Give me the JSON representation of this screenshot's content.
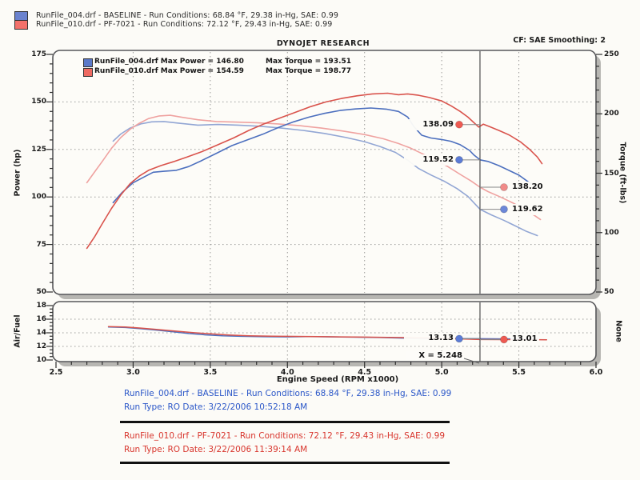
{
  "window": {
    "background": "#fcfbf7"
  },
  "header": {
    "runs": [
      {
        "swatch_color": "#6b83cf",
        "text": "RunFile_004.drf - BASELINE  -  Run Conditions: 68.84 °F, 29.38 in-Hg, SAE: 0.99"
      },
      {
        "swatch_color": "#f3716b",
        "text": "RunFile_010.drf - PF-7021  -  Run Conditions: 72.12 °F, 29.43 in-Hg, SAE: 0.99"
      }
    ],
    "title": "DYNOJET RESEARCH",
    "correction": "CF: SAE  Smoothing: 2"
  },
  "max_legend": [
    {
      "swatch_color": "#5b79c9",
      "label": "RunFile_004.drf Max Power = 146.80",
      "torque": "Max Torque = 193.51"
    },
    {
      "swatch_color": "#ef6a62",
      "label": "RunFile_010.drf Max Power = 154.59",
      "torque": "Max Torque = 198.77"
    }
  ],
  "chart_data": {
    "type": "line",
    "xlabel": "Engine Speed (RPM x1000)",
    "x_range": [
      2.5,
      6.0
    ],
    "x_tick_labels": [
      "2.5",
      "3.0",
      "3.5",
      "4.0",
      "4.5",
      "5.0",
      "5.5",
      "6.0"
    ],
    "x_gridlines": [
      3.0,
      3.5,
      4.0,
      4.5,
      5.0,
      5.5
    ],
    "main_panel": {
      "left_axis": {
        "label": "Power (hp)",
        "ticks": [
          175,
          150,
          125,
          100,
          75,
          50
        ],
        "range": [
          50,
          175
        ],
        "minor_step": 5
      },
      "right_axis": {
        "label": "Torque (ft-lbs)",
        "ticks": [
          250,
          200,
          150,
          100,
          50
        ],
        "range": [
          50,
          250
        ],
        "minor_step": 10
      },
      "h_gridlines_power": [
        150,
        125,
        100,
        75
      ],
      "series": [
        {
          "name": "RunFile_004 Torque",
          "axis": "torque",
          "color": "#92a6d4",
          "points": [
            [
              2.87,
              177
            ],
            [
              2.92,
              183
            ],
            [
              2.98,
              188
            ],
            [
              3.05,
              191.5
            ],
            [
              3.12,
              193.2
            ],
            [
              3.2,
              193.51
            ],
            [
              3.3,
              192
            ],
            [
              3.42,
              190.5
            ],
            [
              3.55,
              191
            ],
            [
              3.68,
              190.5
            ],
            [
              3.82,
              189.5
            ],
            [
              3.96,
              188
            ],
            [
              4.1,
              186
            ],
            [
              4.24,
              183.5
            ],
            [
              4.38,
              180
            ],
            [
              4.5,
              176.5
            ],
            [
              4.6,
              172.5
            ],
            [
              4.7,
              167.5
            ],
            [
              4.78,
              161
            ],
            [
              4.85,
              154
            ],
            [
              4.93,
              148.5
            ],
            [
              5.02,
              143
            ],
            [
              5.1,
              137
            ],
            [
              5.17,
              130.5
            ],
            [
              5.248,
              119.62
            ],
            [
              5.32,
              115
            ],
            [
              5.4,
              110.5
            ],
            [
              5.48,
              105.5
            ],
            [
              5.55,
              101
            ],
            [
              5.62,
              97.5
            ]
          ]
        },
        {
          "name": "RunFile_010 Torque",
          "axis": "torque",
          "color": "#efa2a0",
          "points": [
            [
              2.7,
              142
            ],
            [
              2.75,
              151
            ],
            [
              2.8,
              160
            ],
            [
              2.86,
              171
            ],
            [
              2.92,
              180
            ],
            [
              2.98,
              187
            ],
            [
              3.04,
              192
            ],
            [
              3.1,
              196
            ],
            [
              3.17,
              198.2
            ],
            [
              3.24,
              198.77
            ],
            [
              3.32,
              197
            ],
            [
              3.42,
              195
            ],
            [
              3.54,
              193.5
            ],
            [
              3.66,
              193
            ],
            [
              3.8,
              192.5
            ],
            [
              3.94,
              191.5
            ],
            [
              4.08,
              190
            ],
            [
              4.22,
              188
            ],
            [
              4.36,
              185.5
            ],
            [
              4.5,
              182.5
            ],
            [
              4.62,
              179
            ],
            [
              4.72,
              175
            ],
            [
              4.8,
              171
            ],
            [
              4.88,
              166
            ],
            [
              4.96,
              161
            ],
            [
              5.04,
              155.5
            ],
            [
              5.12,
              149
            ],
            [
              5.19,
              143.5
            ],
            [
              5.248,
              138.2
            ],
            [
              5.3,
              134.5
            ],
            [
              5.38,
              130
            ],
            [
              5.46,
              125
            ],
            [
              5.54,
              119.5
            ],
            [
              5.6,
              114.5
            ],
            [
              5.64,
              111
            ]
          ]
        },
        {
          "name": "RunFile_004 Power",
          "axis": "power",
          "color": "#4c6fbe",
          "points": [
            [
              2.87,
              97
            ],
            [
              2.93,
              102.5
            ],
            [
              3.0,
              107.5
            ],
            [
              3.07,
              110.5
            ],
            [
              3.13,
              113
            ],
            [
              3.2,
              113.5
            ],
            [
              3.28,
              114
            ],
            [
              3.36,
              116
            ],
            [
              3.44,
              119
            ],
            [
              3.54,
              123
            ],
            [
              3.64,
              127
            ],
            [
              3.74,
              130
            ],
            [
              3.84,
              133
            ],
            [
              3.94,
              136.5
            ],
            [
              4.04,
              139.5
            ],
            [
              4.14,
              142
            ],
            [
              4.24,
              144
            ],
            [
              4.34,
              145.5
            ],
            [
              4.44,
              146.3
            ],
            [
              4.54,
              146.8
            ],
            [
              4.64,
              146.2
            ],
            [
              4.72,
              145
            ],
            [
              4.78,
              142
            ],
            [
              4.82,
              137
            ],
            [
              4.87,
              132.5
            ],
            [
              4.93,
              131
            ],
            [
              5.0,
              130.2
            ],
            [
              5.06,
              129.3
            ],
            [
              5.12,
              127.5
            ],
            [
              5.18,
              124.5
            ],
            [
              5.21,
              122
            ],
            [
              5.248,
              119.52
            ],
            [
              5.3,
              118.7
            ],
            [
              5.37,
              116.5
            ],
            [
              5.44,
              113.8
            ],
            [
              5.5,
              111.5
            ],
            [
              5.56,
              108
            ],
            [
              5.61,
              105.5
            ]
          ]
        },
        {
          "name": "RunFile_010 Power",
          "axis": "power",
          "color": "#d9534c",
          "points": [
            [
              2.7,
              73
            ],
            [
              2.75,
              79
            ],
            [
              2.8,
              86
            ],
            [
              2.86,
              94
            ],
            [
              2.92,
              101
            ],
            [
              2.98,
              107
            ],
            [
              3.04,
              111
            ],
            [
              3.1,
              114
            ],
            [
              3.18,
              116.5
            ],
            [
              3.26,
              118.5
            ],
            [
              3.35,
              121
            ],
            [
              3.45,
              124
            ],
            [
              3.55,
              127.5
            ],
            [
              3.65,
              131
            ],
            [
              3.75,
              135
            ],
            [
              3.85,
              138.5
            ],
            [
              3.95,
              141.5
            ],
            [
              4.05,
              144.5
            ],
            [
              4.15,
              147.5
            ],
            [
              4.25,
              150
            ],
            [
              4.35,
              151.8
            ],
            [
              4.45,
              153.2
            ],
            [
              4.55,
              154.2
            ],
            [
              4.65,
              154.59
            ],
            [
              4.72,
              153.8
            ],
            [
              4.78,
              154.2
            ],
            [
              4.85,
              153.5
            ],
            [
              4.92,
              152.3
            ],
            [
              5.0,
              150.5
            ],
            [
              5.06,
              148
            ],
            [
              5.12,
              145
            ],
            [
              5.17,
              142
            ],
            [
              5.21,
              139
            ],
            [
              5.24,
              136.8
            ],
            [
              5.27,
              138.3
            ],
            [
              5.31,
              137
            ],
            [
              5.37,
              135
            ],
            [
              5.44,
              132.5
            ],
            [
              5.51,
              129
            ],
            [
              5.57,
              125
            ],
            [
              5.62,
              121
            ],
            [
              5.65,
              117.5
            ]
          ]
        }
      ],
      "max_values": [
        {
          "file": "RunFile_004.drf",
          "max_power": 146.8,
          "max_torque": 193.51
        },
        {
          "file": "RunFile_010.drf",
          "max_power": 154.59,
          "max_torque": 198.77
        }
      ]
    },
    "af_panel": {
      "left_axis": {
        "label": "Air/Fuel",
        "ticks": [
          18,
          16,
          14,
          12,
          10
        ],
        "range": [
          10,
          18
        ],
        "minor_step": 0.5
      },
      "right_axis": {
        "label": "None"
      },
      "h_gridlines_af": [
        16,
        14,
        12
      ],
      "series": [
        {
          "name": "RunFile_004 A/F",
          "color": "#4c6fbe",
          "points": [
            [
              2.84,
              14.85
            ],
            [
              2.95,
              14.78
            ],
            [
              3.05,
              14.6
            ],
            [
              3.15,
              14.4
            ],
            [
              3.26,
              14.15
            ],
            [
              3.36,
              13.9
            ],
            [
              3.47,
              13.7
            ],
            [
              3.58,
              13.55
            ],
            [
              3.7,
              13.48
            ],
            [
              3.85,
              13.42
            ],
            [
              4.0,
              13.4
            ],
            [
              4.15,
              13.45
            ],
            [
              4.3,
              13.4
            ],
            [
              4.45,
              13.35
            ],
            [
              4.6,
              13.3
            ],
            [
              4.75,
              13.22
            ],
            [
              4.9,
              13.18
            ],
            [
              5.05,
              13.14
            ],
            [
              5.248,
              13.13
            ],
            [
              5.4,
              13.1
            ],
            [
              5.55,
              13.1
            ],
            [
              5.62,
              13.12
            ]
          ]
        },
        {
          "name": "RunFile_010 A/F",
          "color": "#d9534c",
          "points": [
            [
              2.84,
              14.92
            ],
            [
              2.95,
              14.85
            ],
            [
              3.05,
              14.7
            ],
            [
              3.15,
              14.5
            ],
            [
              3.26,
              14.28
            ],
            [
              3.38,
              14.05
            ],
            [
              3.5,
              13.85
            ],
            [
              3.62,
              13.68
            ],
            [
              3.75,
              13.57
            ],
            [
              3.9,
              13.5
            ],
            [
              4.05,
              13.47
            ],
            [
              4.2,
              13.43
            ],
            [
              4.35,
              13.4
            ],
            [
              4.5,
              13.37
            ],
            [
              4.65,
              13.33
            ],
            [
              4.8,
              13.28
            ],
            [
              4.95,
              13.22
            ],
            [
              5.1,
              13.12
            ],
            [
              5.248,
              13.01
            ],
            [
              5.4,
              13.0
            ],
            [
              5.55,
              13.0
            ],
            [
              5.68,
              12.97
            ]
          ]
        }
      ]
    }
  },
  "cursor": {
    "x_value": 5.248,
    "x_label": "X = 5.248",
    "markers": [
      {
        "label": "138.09",
        "value": 138.09,
        "panel": "main",
        "axis": "power",
        "side": "left",
        "dot_color": "#ee5a52"
      },
      {
        "label": "119.52",
        "value": 119.52,
        "panel": "main",
        "axis": "power",
        "side": "left",
        "dot_color": "#5b7bd5"
      },
      {
        "label": "138.20",
        "value": 138.2,
        "panel": "main",
        "axis": "torque",
        "side": "right",
        "dot_color": "#f08a88"
      },
      {
        "label": "119.62",
        "value": 119.62,
        "panel": "main",
        "axis": "torque",
        "side": "right",
        "dot_color": "#6c87d8"
      },
      {
        "label": "13.13",
        "value": 13.13,
        "panel": "af",
        "axis": "af",
        "side": "left",
        "dot_color": "#5b7bd5"
      },
      {
        "label": "13.01",
        "value": 13.01,
        "panel": "af",
        "axis": "af",
        "side": "right",
        "dot_color": "#ee5a52"
      }
    ]
  },
  "footer": {
    "runs": [
      {
        "color": "#2b57c8",
        "line1": "RunFile_004.drf - BASELINE  -  Run Conditions: 68.84 °F, 29.38 in-Hg, SAE: 0.99",
        "line2": "Run Type: RO  Date: 3/22/2006 10:52:18 AM"
      },
      {
        "color": "#d8362e",
        "line1": "RunFile_010.drf - PF-7021  -  Run Conditions: 72.12 °F, 29.43 in-Hg, SAE: 0.99",
        "line2": "Run Type: RO  Date: 3/22/2006 11:39:14 AM"
      }
    ]
  },
  "colors": {
    "panel_border": "#57575a",
    "shadow": "#b7b6b2",
    "grid": "#9a9a98",
    "cursor": "#4f4f4f",
    "tick": "#2e2e2e",
    "footer_blue": "#2b57c8",
    "footer_red": "#d8362e"
  }
}
